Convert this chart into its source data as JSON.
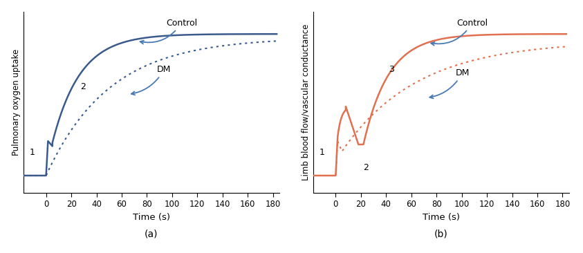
{
  "fig_width": 8.43,
  "fig_height": 3.66,
  "dpi": 100,
  "panel_a": {
    "ylabel": "Pulmonary oxygen uptake",
    "xlabel": "Time (s)",
    "label": "(a)",
    "control_color": "#3a5a8c",
    "xlim": [
      -18,
      185
    ],
    "ylim": [
      0.0,
      1.05
    ],
    "xticks": [
      0,
      20,
      40,
      60,
      80,
      100,
      120,
      140,
      160,
      180
    ]
  },
  "panel_b": {
    "ylabel": "Limb blood flow/vascular conductance",
    "xlabel": "Time (s)",
    "label": "(b)",
    "control_color": "#e07050",
    "xlim": [
      -18,
      185
    ],
    "ylim": [
      0.0,
      1.05
    ],
    "xticks": [
      0,
      20,
      40,
      60,
      80,
      100,
      120,
      140,
      160,
      180
    ]
  },
  "arrow_color": "#4a7ab5"
}
